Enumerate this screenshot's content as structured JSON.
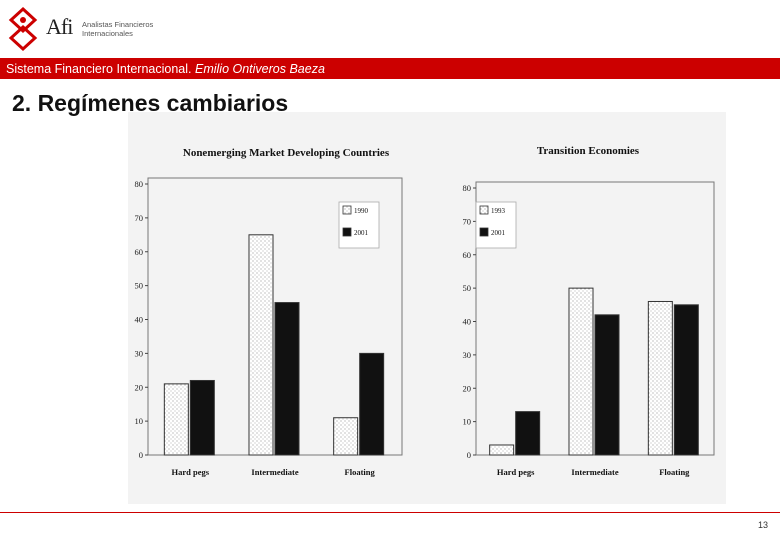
{
  "header": {
    "logo_text": "Afi",
    "logo_sub_line1": "Analistas Financieros",
    "logo_sub_line2": "Internacionales",
    "banner_author_prefix": "Sistema Financiero Internacional. ",
    "banner_author_name": "Emilio Ontiveros Baeza"
  },
  "slide": {
    "title": "2. Regímenes cambiarios",
    "page_number": "13"
  },
  "colors": {
    "brand_red": "#cc0000",
    "series_light": "#ffffff",
    "series_dark": "#111111"
  },
  "chart_data": [
    {
      "type": "bar",
      "title": "Nonemerging Market Developing Countries",
      "categories": [
        "Hard pegs",
        "Intermediate",
        "Floating"
      ],
      "series": [
        {
          "name": "1990",
          "values": [
            21,
            65,
            11
          ]
        },
        {
          "name": "2001",
          "values": [
            22,
            45,
            30
          ]
        }
      ],
      "yticks": [
        "0",
        "10",
        "20",
        "30",
        "40",
        "50",
        "60",
        "70",
        "80"
      ],
      "ylim": [
        0,
        80
      ]
    },
    {
      "type": "bar",
      "title": "Transition Economies",
      "categories": [
        "Hard pegs",
        "Intermediate",
        "Floating"
      ],
      "series": [
        {
          "name": "1993",
          "values": [
            3,
            50,
            46
          ]
        },
        {
          "name": "2001",
          "values": [
            13,
            42,
            45
          ]
        }
      ],
      "yticks": [
        "0",
        "10",
        "20",
        "30",
        "40",
        "50",
        "60",
        "70",
        "80"
      ],
      "ylim": [
        0,
        80
      ]
    }
  ]
}
